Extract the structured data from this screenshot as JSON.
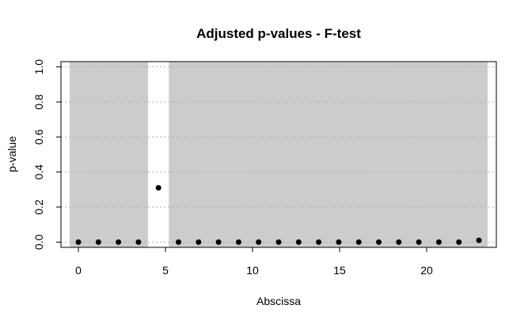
{
  "chart_data": {
    "type": "scatter",
    "title": "Adjusted p-values - F-test",
    "xlabel": "Abscissa",
    "ylabel": "p-value",
    "xlim": [
      -1,
      24
    ],
    "ylim": [
      -0.03,
      1.03
    ],
    "x_ticks": [
      "0",
      "5",
      "10",
      "15",
      "20"
    ],
    "y_ticks": [
      "0.0",
      "0.2",
      "0.4",
      "0.6",
      "0.8",
      "1.0"
    ],
    "grid": true,
    "shaded_regions": [
      {
        "x": [
          -0.5,
          4.0
        ],
        "color": "#cccccc"
      },
      {
        "x": [
          5.2,
          23.5
        ],
        "color": "#cccccc"
      }
    ],
    "series": [
      {
        "x": [
          0,
          1.15,
          2.3,
          3.45,
          4.6,
          5.75,
          6.9,
          8.05,
          9.2,
          10.35,
          11.5,
          12.65,
          13.8,
          14.95,
          16.1,
          17.25,
          18.4,
          19.55,
          20.7,
          21.85,
          23.0
        ],
        "values": [
          0.0,
          0.0,
          0.0,
          0.0,
          0.31,
          0.0,
          0.0,
          0.0,
          0.0,
          0.0,
          0.0,
          0.0,
          0.0,
          0.0,
          0.0,
          0.0,
          0.0,
          0.0,
          0.0,
          0.0,
          0.01
        ]
      }
    ]
  }
}
